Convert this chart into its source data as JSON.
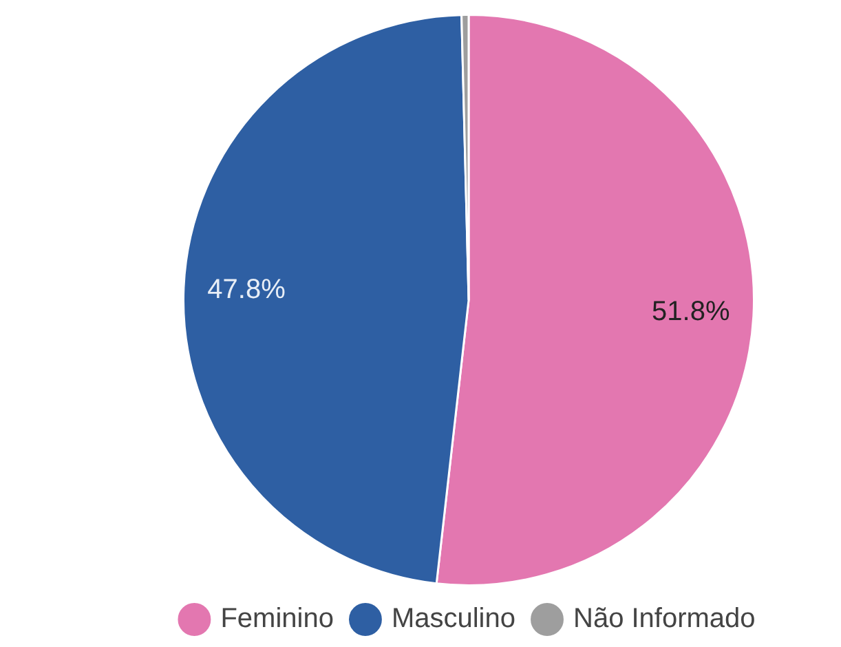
{
  "chart_data": {
    "type": "pie",
    "categories": [
      "Feminino",
      "Masculino",
      "Não Informado"
    ],
    "values": [
      51.8,
      47.8,
      0.4
    ],
    "colors": [
      "#e377b0",
      "#2e5fa3",
      "#9e9e9e"
    ],
    "value_labels": [
      "51.8%",
      "47.8%",
      null
    ],
    "legend": "bottom"
  }
}
